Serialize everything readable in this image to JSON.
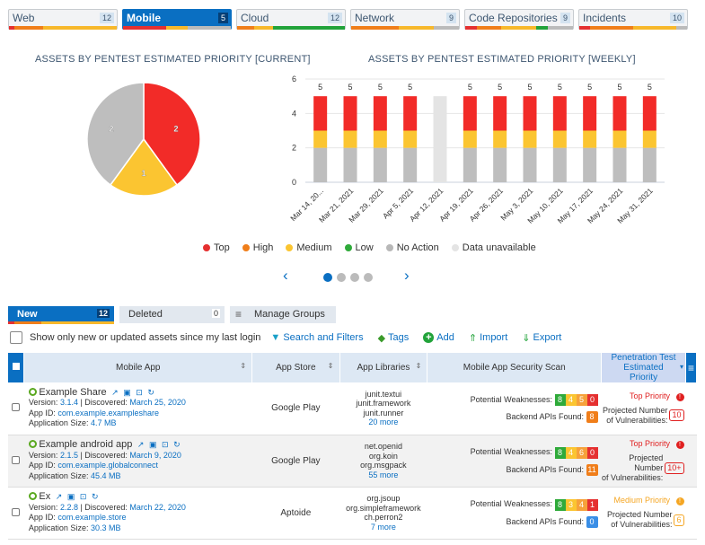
{
  "category_tabs": [
    {
      "label": "Web",
      "count": "12",
      "active": false,
      "bar": [
        [
          "#e53030",
          5
        ],
        [
          "#f07e1a",
          27
        ],
        [
          "#f7b82b",
          68
        ]
      ]
    },
    {
      "label": "Mobile",
      "count": "5",
      "active": true,
      "bar": [
        [
          "#e53030",
          40
        ],
        [
          "#f7b82b",
          20
        ],
        [
          "#bbbbbb",
          40
        ]
      ]
    },
    {
      "label": "Cloud",
      "count": "12",
      "active": false,
      "bar": [
        [
          "#f07e1a",
          16
        ],
        [
          "#f7b82b",
          17
        ],
        [
          "#22a33a",
          67
        ]
      ]
    },
    {
      "label": "Network",
      "count": "9",
      "active": false,
      "bar": [
        [
          "#f07e1a",
          44
        ],
        [
          "#f7b82b",
          33
        ],
        [
          "#bbbbbb",
          23
        ]
      ]
    },
    {
      "label": "Code Repositories",
      "count": "9",
      "active": false,
      "bar": [
        [
          "#e53030",
          11
        ],
        [
          "#f07e1a",
          22
        ],
        [
          "#f7b82b",
          33
        ],
        [
          "#22a33a",
          11
        ],
        [
          "#bbbbbb",
          23
        ]
      ]
    },
    {
      "label": "Incidents",
      "count": "10",
      "active": false,
      "bar": [
        [
          "#e53030",
          10
        ],
        [
          "#f07e1a",
          40
        ],
        [
          "#f7b82b",
          40
        ],
        [
          "#bbbbbb",
          10
        ]
      ]
    }
  ],
  "chart_data": [
    {
      "type": "pie",
      "title": "ASSETS BY PENTEST ESTIMATED PRIORITY [CURRENT]",
      "slices": [
        {
          "label": "Top",
          "value": 2,
          "color": "#f22b28"
        },
        {
          "label": "Medium",
          "value": 1,
          "color": "#fbc531"
        },
        {
          "label": "No Action",
          "value": 2,
          "color": "#bebebe"
        }
      ]
    },
    {
      "type": "bar",
      "stacked": true,
      "title": "ASSETS BY PENTEST ESTIMATED PRIORITY [WEEKLY]",
      "categories": [
        "Mar 14, 20...",
        "Mar 21, 2021",
        "Mar 29, 2021",
        "Apr 5, 2021",
        "Apr 12, 2021",
        "Apr 19, 2021",
        "Apr 26, 2021",
        "May 3, 2021",
        "May 10, 2021",
        "May 17, 2021",
        "May 24, 2021",
        "May 31, 2021"
      ],
      "series": [
        {
          "name": "No Action",
          "color": "#bebebe",
          "values": [
            2,
            2,
            2,
            2,
            0,
            2,
            2,
            2,
            2,
            2,
            2,
            2
          ]
        },
        {
          "name": "Medium",
          "color": "#fbc531",
          "values": [
            1,
            1,
            1,
            1,
            0,
            1,
            1,
            1,
            1,
            1,
            1,
            1
          ]
        },
        {
          "name": "Top",
          "color": "#f22b28",
          "values": [
            2,
            2,
            2,
            2,
            0,
            2,
            2,
            2,
            2,
            2,
            2,
            2
          ]
        },
        {
          "name": "Data unavailable",
          "color": "#e4e4e4",
          "values": [
            0,
            0,
            0,
            0,
            5,
            0,
            0,
            0,
            0,
            0,
            0,
            0
          ]
        }
      ],
      "totals": [
        "5",
        "5",
        "5",
        "5",
        "",
        "5",
        "5",
        "5",
        "5",
        "5",
        "5",
        "5"
      ],
      "yticks": [
        0,
        2,
        4,
        6
      ],
      "ylim": [
        0,
        6
      ],
      "grid": true
    }
  ],
  "legend": [
    {
      "label": "Top",
      "color": "#e53030"
    },
    {
      "label": "High",
      "color": "#f07e1a"
    },
    {
      "label": "Medium",
      "color": "#fbc531"
    },
    {
      "label": "Low",
      "color": "#2faa3a"
    },
    {
      "label": "No Action",
      "color": "#b8b8b8"
    },
    {
      "label": "Data unavailable",
      "color": "#e4e4e4"
    }
  ],
  "pager": {
    "prev": "‹",
    "next": "›",
    "pages": 4,
    "current": 1
  },
  "sub_tabs": [
    {
      "label": "New",
      "count": "12"
    },
    {
      "label": "Deleted",
      "count": "0"
    },
    {
      "label": "Manage Groups",
      "icon": "≡"
    }
  ],
  "toolbar": {
    "show_only_label": "Show only new or updated assets since my last login",
    "search": "Search and Filters",
    "tags": "Tags",
    "add": "Add",
    "import": "Import",
    "export": "Export"
  },
  "table": {
    "headers": {
      "app": "Mobile App",
      "store": "App Store",
      "libs": "App Libraries",
      "scan": "Mobile App Security Scan",
      "priority": "Penetration Test Estimated Priority"
    },
    "labels": {
      "version": "Version: ",
      "discovered": " | Discovered: ",
      "appid": "App ID: ",
      "size": "Application Size: ",
      "weak": "Potential Weaknesses:",
      "apis": "Backend APIs Found:",
      "proj": "Projected Number",
      "proj2": "of Vulnerabilities:"
    },
    "rows": [
      {
        "name": "Example Share",
        "version": "3.1.4",
        "discovered": "March 25, 2020",
        "app_id": "com.example.exampleshare",
        "size": "4.7 MB",
        "store": "Google Play",
        "libs": [
          "junit.textui",
          "junit.framework",
          "junit.runner"
        ],
        "more": "20 more",
        "weak": [
          "8",
          "4",
          "5",
          "0"
        ],
        "apis": "8",
        "apis_color": "#f07e1a",
        "priority": "Top Priority",
        "priority_color": "#e02020",
        "vulns": "10"
      },
      {
        "name": "Example android app",
        "version": "2.1.5",
        "discovered": "March 9, 2020",
        "app_id": "com.example.globalconnect",
        "size": "45.4 MB",
        "store": "Google Play",
        "libs": [
          "net.openid",
          "org.koin",
          "org.msgpack"
        ],
        "more": "55 more",
        "weak": [
          "8",
          "4",
          "6",
          "0"
        ],
        "apis": "11",
        "apis_color": "#f07e1a",
        "priority": "Top Priority",
        "priority_color": "#e02020",
        "vulns": "10+"
      },
      {
        "name": "Ex",
        "version": "2.2.8",
        "discovered": "March 22, 2020",
        "app_id": "com.example.store",
        "size": "30.3 MB",
        "store": "Aptoide",
        "libs": [
          "org.jsoup",
          "org.simpleframework",
          "ch.perron2"
        ],
        "more": "7 more",
        "weak": [
          "8",
          "3",
          "4",
          "1"
        ],
        "apis": "0",
        "apis_color": "#3a8ee6",
        "priority": "Medium Priority",
        "priority_color": "#f5a623",
        "vulns": "6"
      }
    ]
  }
}
